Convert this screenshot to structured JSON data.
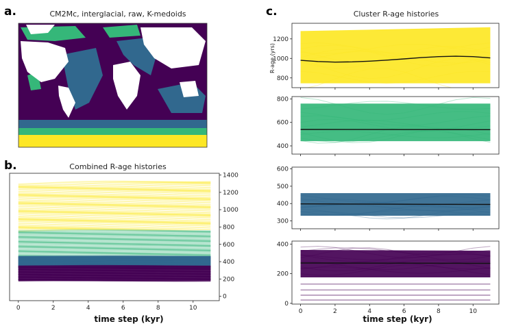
{
  "panels": {
    "a": {
      "letter": "a.",
      "title": "CM2Mc, interglacial, raw, K-medoids"
    },
    "b": {
      "letter": "b.",
      "title": "Combined R-age histories",
      "xlabel": "time step (kyr)"
    },
    "c": {
      "letter": "c.",
      "title": "Cluster R-age histories",
      "xlabel": "time step (kyr)",
      "ylabel": "R-age (yrs)"
    }
  },
  "colors": {
    "cluster_yellow": "#fde725",
    "cluster_green": "#35b779",
    "cluster_blue": "#31688e",
    "cluster_purple": "#440154",
    "land": "#ffffff",
    "median_line": "#111111"
  },
  "map_colors": {
    "ocean_background": "#440154",
    "southern_ocean_bands": [
      "#31688e",
      "#35b779",
      "#fde725"
    ]
  },
  "chart_data": [
    {
      "id": "combined",
      "type": "line",
      "title": "Combined R-age histories",
      "xlabel": "time step (kyr)",
      "ylabel": "",
      "xlim": [
        -0.5,
        11.5
      ],
      "ylim": [
        -50,
        1420
      ],
      "xticks": [
        0,
        2,
        4,
        6,
        8,
        10
      ],
      "yticks": [
        0,
        200,
        400,
        600,
        800,
        1000,
        1200,
        1400
      ],
      "yaxis_side": "right",
      "series": [
        {
          "color": "#fde725",
          "range": [
            750,
            1300
          ]
        },
        {
          "color": "#35b779",
          "range": [
            440,
            760
          ]
        },
        {
          "color": "#31688e",
          "range": [
            330,
            460
          ]
        },
        {
          "color": "#440154",
          "range": [
            180,
            350
          ]
        }
      ]
    },
    {
      "id": "cluster-yellow",
      "type": "line",
      "ylabel": "R-age (yrs)",
      "xlim": [
        -0.5,
        11.5
      ],
      "ylim": [
        700,
        1360
      ],
      "xticks": [
        0,
        2,
        4,
        6,
        8,
        10
      ],
      "yticks": [
        800,
        1000,
        1200
      ],
      "color": "#fde725",
      "band": {
        "x": [
          0,
          11
        ],
        "low": [
          745,
          745
        ],
        "high": [
          1280,
          1320
        ]
      },
      "median": {
        "x": [
          0,
          1,
          2,
          3,
          4,
          5,
          6,
          7,
          8,
          9,
          10,
          11
        ],
        "y": [
          980,
          968,
          962,
          965,
          972,
          982,
          995,
          1008,
          1018,
          1022,
          1018,
          1005
        ]
      }
    },
    {
      "id": "cluster-green",
      "type": "line",
      "xlim": [
        -0.5,
        11.5
      ],
      "ylim": [
        330,
        820
      ],
      "xticks": [
        0,
        2,
        4,
        6,
        8,
        10
      ],
      "yticks": [
        400,
        600,
        800
      ],
      "color": "#35b779",
      "band": {
        "x": [
          0,
          11
        ],
        "low": [
          440,
          440
        ],
        "high": [
          760,
          760
        ]
      },
      "median": {
        "x": [
          0,
          11
        ],
        "y": [
          540,
          538
        ]
      }
    },
    {
      "id": "cluster-blue",
      "type": "line",
      "xlim": [
        -0.5,
        11.5
      ],
      "ylim": [
        255,
        610
      ],
      "xticks": [
        0,
        2,
        4,
        6,
        8,
        10
      ],
      "yticks": [
        300,
        400,
        500,
        600
      ],
      "color": "#31688e",
      "band": {
        "x": [
          0,
          11
        ],
        "low": [
          330,
          330
        ],
        "high": [
          460,
          460
        ]
      },
      "median": {
        "x": [
          0,
          11
        ],
        "y": [
          398,
          395
        ]
      }
    },
    {
      "id": "cluster-purple",
      "type": "line",
      "xlabel": "time step (kyr)",
      "xlim": [
        -0.5,
        11.5
      ],
      "ylim": [
        -5,
        420
      ],
      "xticks": [
        0,
        2,
        4,
        6,
        8,
        10
      ],
      "yticks": [
        0,
        200,
        400
      ],
      "color": "#440154",
      "band": {
        "x": [
          0,
          11
        ],
        "low": [
          175,
          175
        ],
        "high": [
          360,
          355
        ]
      },
      "median": {
        "x": [
          0,
          11
        ],
        "y": [
          272,
          270
        ]
      },
      "outlier_levels": [
        22,
        55,
        90,
        130
      ]
    }
  ]
}
